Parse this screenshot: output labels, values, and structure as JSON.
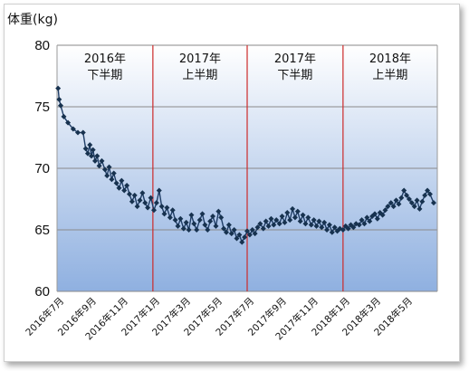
{
  "chart_data": {
    "type": "line",
    "ylabel": "体重(kg)",
    "ylim": [
      60,
      80
    ],
    "yticks": [
      60,
      65,
      70,
      75,
      80
    ],
    "xlim": [
      "2016-07-01",
      "2018-07-01"
    ],
    "xticks": [
      "2016年7月",
      "2016年9月",
      "2016年11月",
      "2017年1月",
      "2017年3月",
      "2017年5月",
      "2017年7月",
      "2017年9月",
      "2017年11月",
      "2018年1月",
      "2018年3月",
      "2018年5月"
    ],
    "grid": true,
    "colors": {
      "bg_top": "#ffffff",
      "bg_bottom": "#8fb0e0",
      "line": "#1f3d66",
      "marker": "#17324f",
      "divider": "#cc2a2a",
      "grid": "#8a8a8a"
    },
    "period_dividers": [
      "2017-01-01",
      "2017-07-01",
      "2018-01-01"
    ],
    "periods": [
      {
        "year": "2016年",
        "half": "下半期"
      },
      {
        "year": "2017年",
        "half": "上半期"
      },
      {
        "year": "2017年",
        "half": "下半期"
      },
      {
        "year": "2018年",
        "half": "上半期"
      }
    ],
    "series": [
      {
        "points": [
          [
            "2016-07-03",
            76.5
          ],
          [
            "2016-07-05",
            75.6
          ],
          [
            "2016-07-08",
            75.1
          ],
          [
            "2016-07-14",
            74.2
          ],
          [
            "2016-07-22",
            73.7
          ],
          [
            "2016-08-01",
            73.2
          ],
          [
            "2016-08-10",
            72.9
          ],
          [
            "2016-08-20",
            72.9
          ],
          [
            "2016-08-25",
            71.6
          ],
          [
            "2016-08-29",
            71.2
          ],
          [
            "2016-09-02",
            71.9
          ],
          [
            "2016-09-05",
            71.0
          ],
          [
            "2016-09-08",
            71.5
          ],
          [
            "2016-09-12",
            70.6
          ],
          [
            "2016-09-16",
            71.0
          ],
          [
            "2016-09-20",
            70.2
          ],
          [
            "2016-09-25",
            70.6
          ],
          [
            "2016-10-01",
            69.9
          ],
          [
            "2016-10-05",
            69.4
          ],
          [
            "2016-10-09",
            70.1
          ],
          [
            "2016-10-14",
            69.1
          ],
          [
            "2016-10-18",
            69.6
          ],
          [
            "2016-10-23",
            68.8
          ],
          [
            "2016-10-28",
            68.4
          ],
          [
            "2016-11-02",
            69.0
          ],
          [
            "2016-11-07",
            68.2
          ],
          [
            "2016-11-12",
            68.6
          ],
          [
            "2016-11-17",
            67.9
          ],
          [
            "2016-11-22",
            67.3
          ],
          [
            "2016-11-27",
            67.8
          ],
          [
            "2016-12-02",
            66.9
          ],
          [
            "2016-12-07",
            67.4
          ],
          [
            "2016-12-12",
            68.0
          ],
          [
            "2016-12-17",
            67.2
          ],
          [
            "2016-12-22",
            66.8
          ],
          [
            "2016-12-28",
            67.6
          ],
          [
            "2017-01-03",
            66.6
          ],
          [
            "2017-01-08",
            67.2
          ],
          [
            "2017-01-13",
            68.2
          ],
          [
            "2017-01-18",
            66.9
          ],
          [
            "2017-01-23",
            66.3
          ],
          [
            "2017-01-28",
            66.8
          ],
          [
            "2017-02-03",
            66.0
          ],
          [
            "2017-02-08",
            66.6
          ],
          [
            "2017-02-13",
            65.8
          ],
          [
            "2017-02-18",
            65.3
          ],
          [
            "2017-02-23",
            65.9
          ],
          [
            "2017-03-01",
            65.1
          ],
          [
            "2017-03-06",
            65.6
          ],
          [
            "2017-03-11",
            65.0
          ],
          [
            "2017-03-16",
            66.2
          ],
          [
            "2017-03-21",
            65.5
          ],
          [
            "2017-03-26",
            65.0
          ],
          [
            "2017-04-01",
            65.8
          ],
          [
            "2017-04-06",
            66.3
          ],
          [
            "2017-04-11",
            65.4
          ],
          [
            "2017-04-16",
            65.0
          ],
          [
            "2017-04-21",
            65.7
          ],
          [
            "2017-04-26",
            66.1
          ],
          [
            "2017-05-02",
            65.3
          ],
          [
            "2017-05-07",
            66.5
          ],
          [
            "2017-05-12",
            66.0
          ],
          [
            "2017-05-17",
            65.1
          ],
          [
            "2017-05-22",
            64.8
          ],
          [
            "2017-05-27",
            65.4
          ],
          [
            "2017-06-01",
            64.7
          ],
          [
            "2017-06-06",
            65.0
          ],
          [
            "2017-06-11",
            64.3
          ],
          [
            "2017-06-16",
            64.6
          ],
          [
            "2017-06-21",
            64.0
          ],
          [
            "2017-06-26",
            64.4
          ],
          [
            "2017-07-01",
            64.9
          ],
          [
            "2017-07-06",
            64.6
          ],
          [
            "2017-07-11",
            65.0
          ],
          [
            "2017-07-16",
            64.7
          ],
          [
            "2017-07-21",
            65.2
          ],
          [
            "2017-07-26",
            65.5
          ],
          [
            "2017-08-01",
            65.1
          ],
          [
            "2017-08-06",
            65.7
          ],
          [
            "2017-08-11",
            65.3
          ],
          [
            "2017-08-16",
            65.9
          ],
          [
            "2017-08-21",
            65.4
          ],
          [
            "2017-08-26",
            65.8
          ],
          [
            "2017-09-01",
            65.5
          ],
          [
            "2017-09-06",
            66.1
          ],
          [
            "2017-09-11",
            65.6
          ],
          [
            "2017-09-16",
            66.4
          ],
          [
            "2017-09-21",
            65.8
          ],
          [
            "2017-09-26",
            66.7
          ],
          [
            "2017-10-01",
            66.0
          ],
          [
            "2017-10-06",
            66.5
          ],
          [
            "2017-10-11",
            65.7
          ],
          [
            "2017-10-16",
            66.2
          ],
          [
            "2017-10-21",
            65.5
          ],
          [
            "2017-10-26",
            66.0
          ],
          [
            "2017-11-01",
            65.4
          ],
          [
            "2017-11-06",
            65.8
          ],
          [
            "2017-11-11",
            65.3
          ],
          [
            "2017-11-16",
            65.7
          ],
          [
            "2017-11-21",
            65.2
          ],
          [
            "2017-11-26",
            65.6
          ],
          [
            "2017-12-01",
            65.0
          ],
          [
            "2017-12-06",
            65.4
          ],
          [
            "2017-12-11",
            64.8
          ],
          [
            "2017-12-16",
            65.2
          ],
          [
            "2017-12-21",
            64.9
          ],
          [
            "2017-12-26",
            65.1
          ],
          [
            "2018-01-01",
            65.0
          ],
          [
            "2018-01-06",
            65.3
          ],
          [
            "2018-01-11",
            65.1
          ],
          [
            "2018-01-16",
            65.4
          ],
          [
            "2018-01-21",
            65.2
          ],
          [
            "2018-01-26",
            65.5
          ],
          [
            "2018-02-01",
            65.4
          ],
          [
            "2018-02-06",
            65.8
          ],
          [
            "2018-02-11",
            65.5
          ],
          [
            "2018-02-16",
            66.0
          ],
          [
            "2018-02-21",
            65.7
          ],
          [
            "2018-02-26",
            66.1
          ],
          [
            "2018-03-03",
            66.3
          ],
          [
            "2018-03-08",
            65.9
          ],
          [
            "2018-03-13",
            66.4
          ],
          [
            "2018-03-18",
            66.2
          ],
          [
            "2018-03-23",
            66.6
          ],
          [
            "2018-03-28",
            66.9
          ],
          [
            "2018-04-03",
            67.2
          ],
          [
            "2018-04-08",
            66.9
          ],
          [
            "2018-04-13",
            67.4
          ],
          [
            "2018-04-18",
            67.1
          ],
          [
            "2018-04-23",
            67.6
          ],
          [
            "2018-04-28",
            68.2
          ],
          [
            "2018-05-03",
            67.8
          ],
          [
            "2018-05-08",
            67.5
          ],
          [
            "2018-05-13",
            67.2
          ],
          [
            "2018-05-18",
            66.9
          ],
          [
            "2018-05-23",
            67.4
          ],
          [
            "2018-05-28",
            66.7
          ],
          [
            "2018-06-02",
            67.3
          ],
          [
            "2018-06-07",
            67.8
          ],
          [
            "2018-06-12",
            68.2
          ],
          [
            "2018-06-17",
            67.9
          ],
          [
            "2018-06-24",
            67.2
          ]
        ]
      }
    ]
  }
}
